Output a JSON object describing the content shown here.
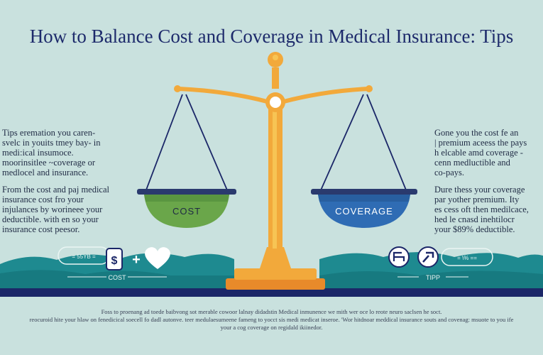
{
  "title": "How to Balance Cost and Coverage in Medical Insurance: Tips",
  "left_column": {
    "paragraph_1": "Tips eremation you caren-\nsvelc in youits tmey bay- in\nmedi:ical insumoce.\nmoorinsitlee  ~coverage or\nmedlocel and insurance.",
    "paragraph_2": "From the cost and paj medical\ninsurance cost fro your\ninjulances by worineee your\ndeductible. with en so your\ninsurance cost peesor."
  },
  "right_column": {
    "paragraph_1": "Gone you the cost fe an\n| premium aceess the pays\nh elcable amd coverage -\ncenn medluctible and\nco-pays.",
    "paragraph_2": "Dure thess your coverage\npar yother premium. Ity\nes cess oft then medilcace,\nhed le cnasd inehtilocr\nyour $89% deductible."
  },
  "scale": {
    "left_pan_label": "COST",
    "right_pan_label": "COVERAGE"
  },
  "left_badge": {
    "caption": "COST",
    "pill_text": "= 55YB =",
    "plus": "+",
    "dollar": "$"
  },
  "right_badge": {
    "caption": "TIPP",
    "pill_text": "= \\% =="
  },
  "footer": {
    "line_1": "Foss to proenang ad toede baibvong sot merable cowoor lalnay didadstin Medical inmunence we mith wer oce lo reote neuro saclsen he soct.",
    "line_2": "reocuroid hite your hlaw on fenedicical soecell fo dadl autonve. teer medulaesumeene fameng to yocct sis medi medicat inseroe.  'Wor hitdnoar meddical insurance souts and covenag: msuote to you ife",
    "line_3": "your a cog coverage on regidald ikiinedor."
  },
  "colors": {
    "background": "#c9e1de",
    "title": "#1d2a6b",
    "navy_bar": "#1b2768",
    "teal_hills": "#1e8a90",
    "gold": "#f2a93b",
    "gold_light": "#f7c454",
    "cost_pan": "#6aa64a",
    "coverage_pan": "#2f6cb4"
  },
  "icons": [
    "dollar-bottle-icon",
    "heart-icon",
    "ticket-icon",
    "chair-icon",
    "gavel-icon"
  ]
}
